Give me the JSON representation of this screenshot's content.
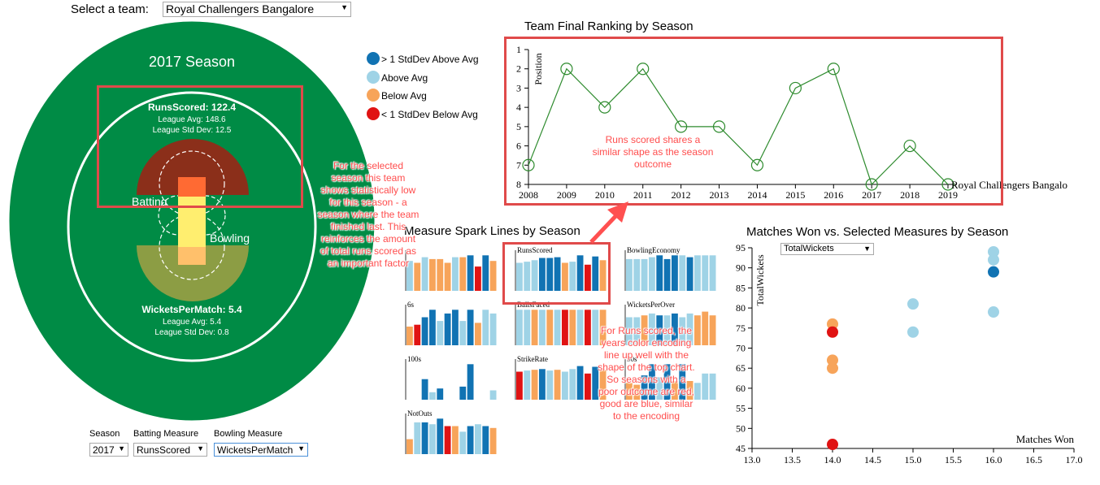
{
  "header": {
    "select_label": "Select a team:",
    "team_value": "Royal Challengers Bangalore"
  },
  "field": {
    "season_title": "2017 Season",
    "batting_title": "RunsScored: 122.4",
    "batting_avg": "League Avg: 148.6",
    "batting_std": "League Std Dev: 12.5",
    "bowling_title": "WicketsPerMatch: 5.4",
    "bowling_avg": "League Avg: 5.4",
    "bowling_std": "League Std Dev: 0.8",
    "batting_label": "Batting",
    "bowling_label": "Bowling",
    "colors": {
      "field": "#008b45",
      "oval": "#ffffff",
      "batting_arc": "#8b2f1a",
      "bowling_arc": "#8c9d44",
      "pitch_top": "#ff6a33",
      "pitch_mid": "#ffee6f",
      "pitch_bottom": "#ffc06b"
    }
  },
  "controls": {
    "season_label": "Season",
    "season_value": "2017",
    "batting_label": "Batting Measure",
    "batting_value": "RunsScored",
    "bowling_label": "Bowling Measure",
    "bowling_value": "WicketsPerMatch"
  },
  "legend": {
    "items": [
      {
        "label": "> 1 StdDev Above Avg",
        "color": "#1173b3"
      },
      {
        "label": "Above Avg",
        "color": "#9fd3e6"
      },
      {
        "label": "Below Avg",
        "color": "#f7a45a"
      },
      {
        "label": "< 1 StdDev Below Avg",
        "color": "#e01313"
      }
    ]
  },
  "ranking_chart": {
    "title": "Team Final Ranking by Season",
    "ylabel": "Position",
    "series_label": "Royal Challengers Bangalo",
    "chart_data": {
      "type": "line",
      "x": [
        2008,
        2009,
        2010,
        2011,
        2012,
        2013,
        2014,
        2015,
        2016,
        2017,
        2018,
        2019
      ],
      "values": [
        7,
        2,
        4,
        2,
        5,
        5,
        7,
        3,
        2,
        8,
        6,
        8
      ],
      "ylim": [
        1,
        8
      ],
      "line_color": "#2e8b2e"
    }
  },
  "spark": {
    "title": "Measure Spark Lines by Season",
    "panels": [
      {
        "name": "",
        "values": [
          0.8,
          0.75,
          0.9,
          0.85,
          0.85,
          0.75,
          0.9,
          0.9,
          0.95,
          0.65,
          0.95,
          0.8
        ],
        "colors": [
          "#9fd3e6",
          "#f7a45a",
          "#9fd3e6",
          "#f7a45a",
          "#f7a45a",
          "#f7a45a",
          "#9fd3e6",
          "#f7a45a",
          "#1173b3",
          "#e01313",
          "#1173b3",
          "#f7a45a"
        ]
      },
      {
        "name": "RunsScored",
        "values": [
          0.75,
          0.78,
          0.82,
          0.88,
          0.88,
          0.9,
          0.75,
          0.78,
          0.95,
          0.7,
          0.92,
          0.82
        ],
        "colors": [
          "#9fd3e6",
          "#9fd3e6",
          "#9fd3e6",
          "#1173b3",
          "#1173b3",
          "#1173b3",
          "#f7a45a",
          "#9fd3e6",
          "#1173b3",
          "#e01313",
          "#1173b3",
          "#f7a45a"
        ]
      },
      {
        "name": "BowlingEconomy",
        "values": [
          0.85,
          0.85,
          0.85,
          0.9,
          0.95,
          0.85,
          0.95,
          0.95,
          0.9,
          0.95,
          0.95,
          0.95
        ],
        "colors": [
          "#9fd3e6",
          "#9fd3e6",
          "#9fd3e6",
          "#9fd3e6",
          "#1173b3",
          "#1173b3",
          "#1173b3",
          "#9fd3e6",
          "#1173b3",
          "#9fd3e6",
          "#9fd3e6",
          "#9fd3e6"
        ]
      },
      {
        "name": "6s",
        "values": [
          0.5,
          0.55,
          0.75,
          0.95,
          0.65,
          0.85,
          0.95,
          0.65,
          0.95,
          0.6,
          0.95,
          0.85
        ],
        "colors": [
          "#f7a45a",
          "#e01313",
          "#1173b3",
          "#1173b3",
          "#9fd3e6",
          "#1173b3",
          "#1173b3",
          "#9fd3e6",
          "#1173b3",
          "#f7a45a",
          "#9fd3e6",
          "#9fd3e6"
        ]
      },
      {
        "name": "BallsFaced",
        "values": [
          0.95,
          0.95,
          0.95,
          0.95,
          0.95,
          0.95,
          0.95,
          0.95,
          0.95,
          0.95,
          0.95,
          0.95
        ],
        "colors": [
          "#9fd3e6",
          "#9fd3e6",
          "#f7a45a",
          "#9fd3e6",
          "#f7a45a",
          "#9fd3e6",
          "#e01313",
          "#f7a45a",
          "#9fd3e6",
          "#e01313",
          "#9fd3e6",
          "#f7a45a"
        ]
      },
      {
        "name": "WicketsPerOver",
        "values": [
          0.75,
          0.75,
          0.8,
          0.85,
          0.8,
          0.8,
          0.85,
          0.75,
          0.85,
          0.8,
          0.9,
          0.8
        ],
        "colors": [
          "#9fd3e6",
          "#9fd3e6",
          "#f7a45a",
          "#9fd3e6",
          "#1173b3",
          "#9fd3e6",
          "#1173b3",
          "#9fd3e6",
          "#9fd3e6",
          "#f7a45a",
          "#f7a45a",
          "#f7a45a"
        ]
      },
      {
        "name": "100s",
        "values": [
          0,
          0,
          0.55,
          0.2,
          0.3,
          0,
          0,
          0.35,
          0.95,
          0,
          0,
          0.25
        ],
        "colors": [
          "#1173b3",
          "#1173b3",
          "#1173b3",
          "#9fd3e6",
          "#1173b3",
          "#1173b3",
          "#1173b3",
          "#1173b3",
          "#1173b3",
          "#1173b3",
          "#1173b3",
          "#9fd3e6"
        ]
      },
      {
        "name": "StrikeRate",
        "values": [
          0.75,
          0.78,
          0.8,
          0.82,
          0.78,
          0.8,
          0.75,
          0.82,
          0.9,
          0.7,
          0.88,
          0.8
        ],
        "colors": [
          "#e01313",
          "#9fd3e6",
          "#f7a45a",
          "#1173b3",
          "#9fd3e6",
          "#f7a45a",
          "#9fd3e6",
          "#9fd3e6",
          "#1173b3",
          "#e01313",
          "#1173b3",
          "#f7a45a"
        ]
      },
      {
        "name": "50s",
        "values": [
          0.45,
          0.4,
          0.65,
          0.95,
          0.6,
          0.95,
          0.5,
          0.95,
          0.5,
          0.45,
          0.7,
          0.7
        ],
        "colors": [
          "#f7a45a",
          "#f7a45a",
          "#1173b3",
          "#1173b3",
          "#9fd3e6",
          "#1173b3",
          "#f7a45a",
          "#1173b3",
          "#f7a45a",
          "#9fd3e6",
          "#9fd3e6",
          "#9fd3e6"
        ]
      },
      {
        "name": "NotOuts",
        "values": [
          0.4,
          0.85,
          0.85,
          0.8,
          0.95,
          0.75,
          0.75,
          0.6,
          0.75,
          0.8,
          0.75,
          0.7
        ],
        "colors": [
          "#f7a45a",
          "#9fd3e6",
          "#1173b3",
          "#9fd3e6",
          "#1173b3",
          "#e01313",
          "#f7a45a",
          "#9fd3e6",
          "#1173b3",
          "#9fd3e6",
          "#1173b3",
          "#f7a45a"
        ]
      }
    ]
  },
  "scatter": {
    "title": "Matches Won vs. Selected Measures by Season",
    "dropdown_value": "TotalWickets",
    "ylabel": "TotalWickets",
    "xlabel": "Matches Won",
    "chart_data": {
      "type": "scatter",
      "xlim": [
        13.0,
        17.0
      ],
      "ylim": [
        45,
        95
      ],
      "xticks": [
        "13.0",
        "13.5",
        "14.0",
        "14.5",
        "15.0",
        "15.5",
        "16.0",
        "16.5",
        "17.0"
      ],
      "yticks": [
        "45",
        "50",
        "55",
        "60",
        "65",
        "70",
        "75",
        "80",
        "85",
        "90",
        "95"
      ],
      "points": [
        {
          "x": 14,
          "y": 76,
          "color": "#f7a45a"
        },
        {
          "x": 14,
          "y": 74,
          "color": "#e01313"
        },
        {
          "x": 14,
          "y": 67,
          "color": "#f7a45a"
        },
        {
          "x": 14,
          "y": 65,
          "color": "#f7a45a"
        },
        {
          "x": 14,
          "y": 46,
          "color": "#e01313"
        },
        {
          "x": 15,
          "y": 81,
          "color": "#9fd3e6"
        },
        {
          "x": 15,
          "y": 74,
          "color": "#9fd3e6"
        },
        {
          "x": 16,
          "y": 94,
          "color": "#9fd3e6"
        },
        {
          "x": 16,
          "y": 92,
          "color": "#9fd3e6"
        },
        {
          "x": 16,
          "y": 89,
          "color": "#1173b3"
        },
        {
          "x": 16,
          "y": 79,
          "color": "#9fd3e6"
        }
      ]
    }
  },
  "annotations": {
    "left": "For the selected season this team shows statistically low for this season - a season where the team finished last. This reinforces the amount of total runs scored as an important factor",
    "top": "Runs scored shares a similar shape as the season outcome",
    "middle": "For Runs scored, the years color encoding line up well with the shape of the top chart. So seasons with a poor outcome are red, good are blue, similar to the encoding"
  }
}
